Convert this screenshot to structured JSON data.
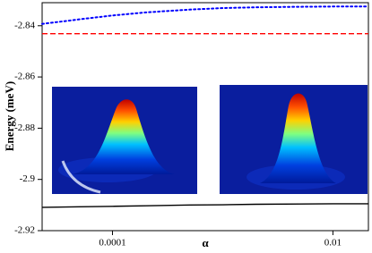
{
  "chart_data": {
    "type": "line",
    "y_label": "Energy (meV)",
    "x_label": "α",
    "x_scale": "log",
    "x": [
      2.3e-05,
      5e-05,
      0.0001,
      0.0002,
      0.0005,
      0.001,
      0.002,
      0.005,
      0.01,
      0.021
    ],
    "series": [
      {
        "color": "#0000ff",
        "style": "dotted",
        "values": [
          -2.8393,
          -2.8375,
          -2.836,
          -2.8348,
          -2.8337,
          -2.8331,
          -2.8328,
          -2.8326,
          -2.8325,
          -2.8325
        ]
      },
      {
        "color": "#ff0000",
        "style": "dashed",
        "values": [
          -2.8431,
          -2.8431,
          -2.8431,
          -2.8431,
          -2.8431,
          -2.8431,
          -2.8431,
          -2.8431,
          -2.8431,
          -2.8431
        ]
      },
      {
        "color": "#000000",
        "style": "solid",
        "values": [
          -2.9109,
          -2.9107,
          -2.9105,
          -2.9103,
          -2.91,
          -2.9099,
          -2.9097,
          -2.9096,
          -2.9095,
          -2.9095
        ]
      }
    ],
    "xlim": [
      2.3e-05,
      0.021
    ],
    "xticks": [
      0.0001,
      0.01
    ],
    "ylim": [
      -2.92,
      -2.831
    ],
    "yticks": [
      -2.84,
      -2.86,
      -2.88,
      -2.9,
      -2.92
    ]
  }
}
